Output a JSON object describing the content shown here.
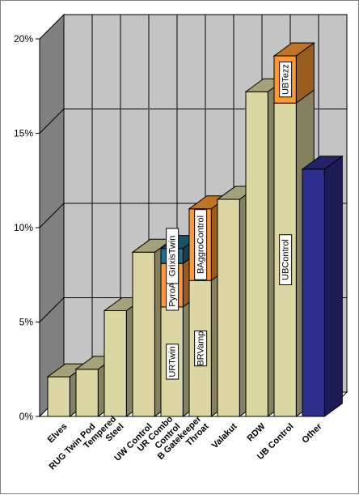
{
  "chart_data": {
    "type": "bar",
    "stacked": true,
    "three_d": true,
    "y_unit": "%",
    "ylim": [
      0,
      20
    ],
    "yticks": [
      "0%",
      "5%",
      "10%",
      "15%",
      "20%"
    ],
    "grid": true,
    "categories": [
      "Elves",
      "RUG Twin Pod",
      "Tempered Steel",
      "UW Control",
      "UR Combo Control",
      "B Gatekeeper Throat",
      "Valakut",
      "RDW",
      "UB Control",
      "Other"
    ],
    "bars": [
      {
        "category": "Elves",
        "segments": [
          {
            "value": 2.1
          }
        ]
      },
      {
        "category": "RUG Twin Pod",
        "segments": [
          {
            "value": 2.5
          }
        ]
      },
      {
        "category": "Tempered Steel",
        "segments": [
          {
            "value": 5.6
          }
        ]
      },
      {
        "category": "UW Control",
        "segments": [
          {
            "value": 8.7
          }
        ]
      },
      {
        "category": "UR Combo Control",
        "segments": [
          {
            "value": 5.8,
            "label": "URTwin"
          },
          {
            "value": 2.3,
            "label": "PyroAscen",
            "color": "#ff9933"
          },
          {
            "value": 0.8,
            "label": "GrixisTwin",
            "color": "#1f6e8c"
          }
        ]
      },
      {
        "category": "B Gatekeeper Throat",
        "segments": [
          {
            "value": 7.2,
            "label": "BRVamp"
          },
          {
            "value": 3.8,
            "label": "BAggroControl",
            "color": "#ff9933"
          }
        ]
      },
      {
        "category": "Valakut",
        "segments": [
          {
            "value": 11.5
          }
        ]
      },
      {
        "category": "RDW",
        "segments": [
          {
            "value": 17.2
          }
        ]
      },
      {
        "category": "UB Control",
        "segments": [
          {
            "value": 16.6,
            "label": "UBControl"
          },
          {
            "value": 2.5,
            "label": "UBTezz",
            "color": "#ff9933"
          }
        ]
      },
      {
        "category": "Other",
        "segments": [
          {
            "value": 13.1,
            "color": "#2e2e8c"
          }
        ]
      }
    ],
    "colors": {
      "default_bar": "#dcd7a2",
      "plot_back": "#c4c4c4",
      "side_wall": "#808080",
      "floor": "#ffffff"
    }
  }
}
